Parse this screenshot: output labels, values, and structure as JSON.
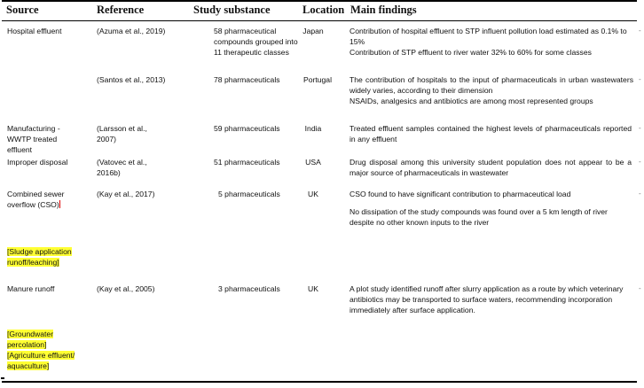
{
  "header": {
    "source": "Source",
    "reference": "Reference",
    "substance": "Study substance",
    "location": "Location",
    "findings": "Main findings"
  },
  "rows": [
    {
      "source": "Hospital effluent",
      "reference": "(Azuma et al., 2019)",
      "substance": "58 pharmaceutical compounds grouped into 11 therapeutic classes",
      "location": "Japan",
      "findings": [
        "Contribution of hospital effluent to STP influent pollution load estimated as 0.1% to 15%",
        "Contribution of STP effluent to river water 32% to 60% for some classes"
      ]
    },
    {
      "source": "",
      "reference": "(Santos et al., 2013)",
      "substance": "78 pharmaceuticals",
      "location": "Portugal",
      "findings": [
        "The contribution of hospitals to the input of pharmaceuticals in urban wastewaters widely varies, according to their dimension",
        "NSAIDs, analgesics and antibiotics are among most represented groups"
      ]
    },
    {
      "source": "Manufacturing - WWTP treated effluent",
      "reference": "(Larsson et al., 2007)",
      "substance": "59 pharmaceuticals",
      "location": "India",
      "findings": [
        "Treated effluent samples contained the highest levels of pharmaceuticals reported in any effluent"
      ]
    },
    {
      "source": "Improper disposal",
      "reference": "(Vatovec et al., 2016b)",
      "substance": "51 pharmaceuticals",
      "location": "USA",
      "findings": [
        "Drug disposal among this university student population does not appear to be a major source of pharmaceuticals in wastewater"
      ]
    },
    {
      "source": "Combined sewer overflow (CSO)",
      "reference": "(Kay et al., 2017)",
      "substance": "5 pharmaceuticals",
      "location": "UK",
      "findings": [
        "CSO found to have significant contribution to pharmaceutical load",
        "No dissipation of the study compounds was found over a 5 km length of river despite no other known inputs to the river"
      ]
    },
    {
      "source": "[Sludge application runoff/leaching]",
      "reference": "",
      "substance": "",
      "location": "",
      "findings": []
    },
    {
      "source": "Manure runoff",
      "reference": "(Kay et al., 2005)",
      "substance": "3 pharmaceuticals",
      "location": "UK",
      "findings": [
        "A plot study identified runoff after slurry application as a route by which veterinary antibiotics may be transported to surface waters, recommending incorporation immediately after surface application."
      ]
    },
    {
      "source": "[Groundwater percolation]",
      "reference": "",
      "substance": "",
      "location": "",
      "findings": []
    },
    {
      "source": "[Agriculture effluent/ aquaculture]",
      "reference": "",
      "substance": "",
      "location": "",
      "findings": []
    }
  ]
}
